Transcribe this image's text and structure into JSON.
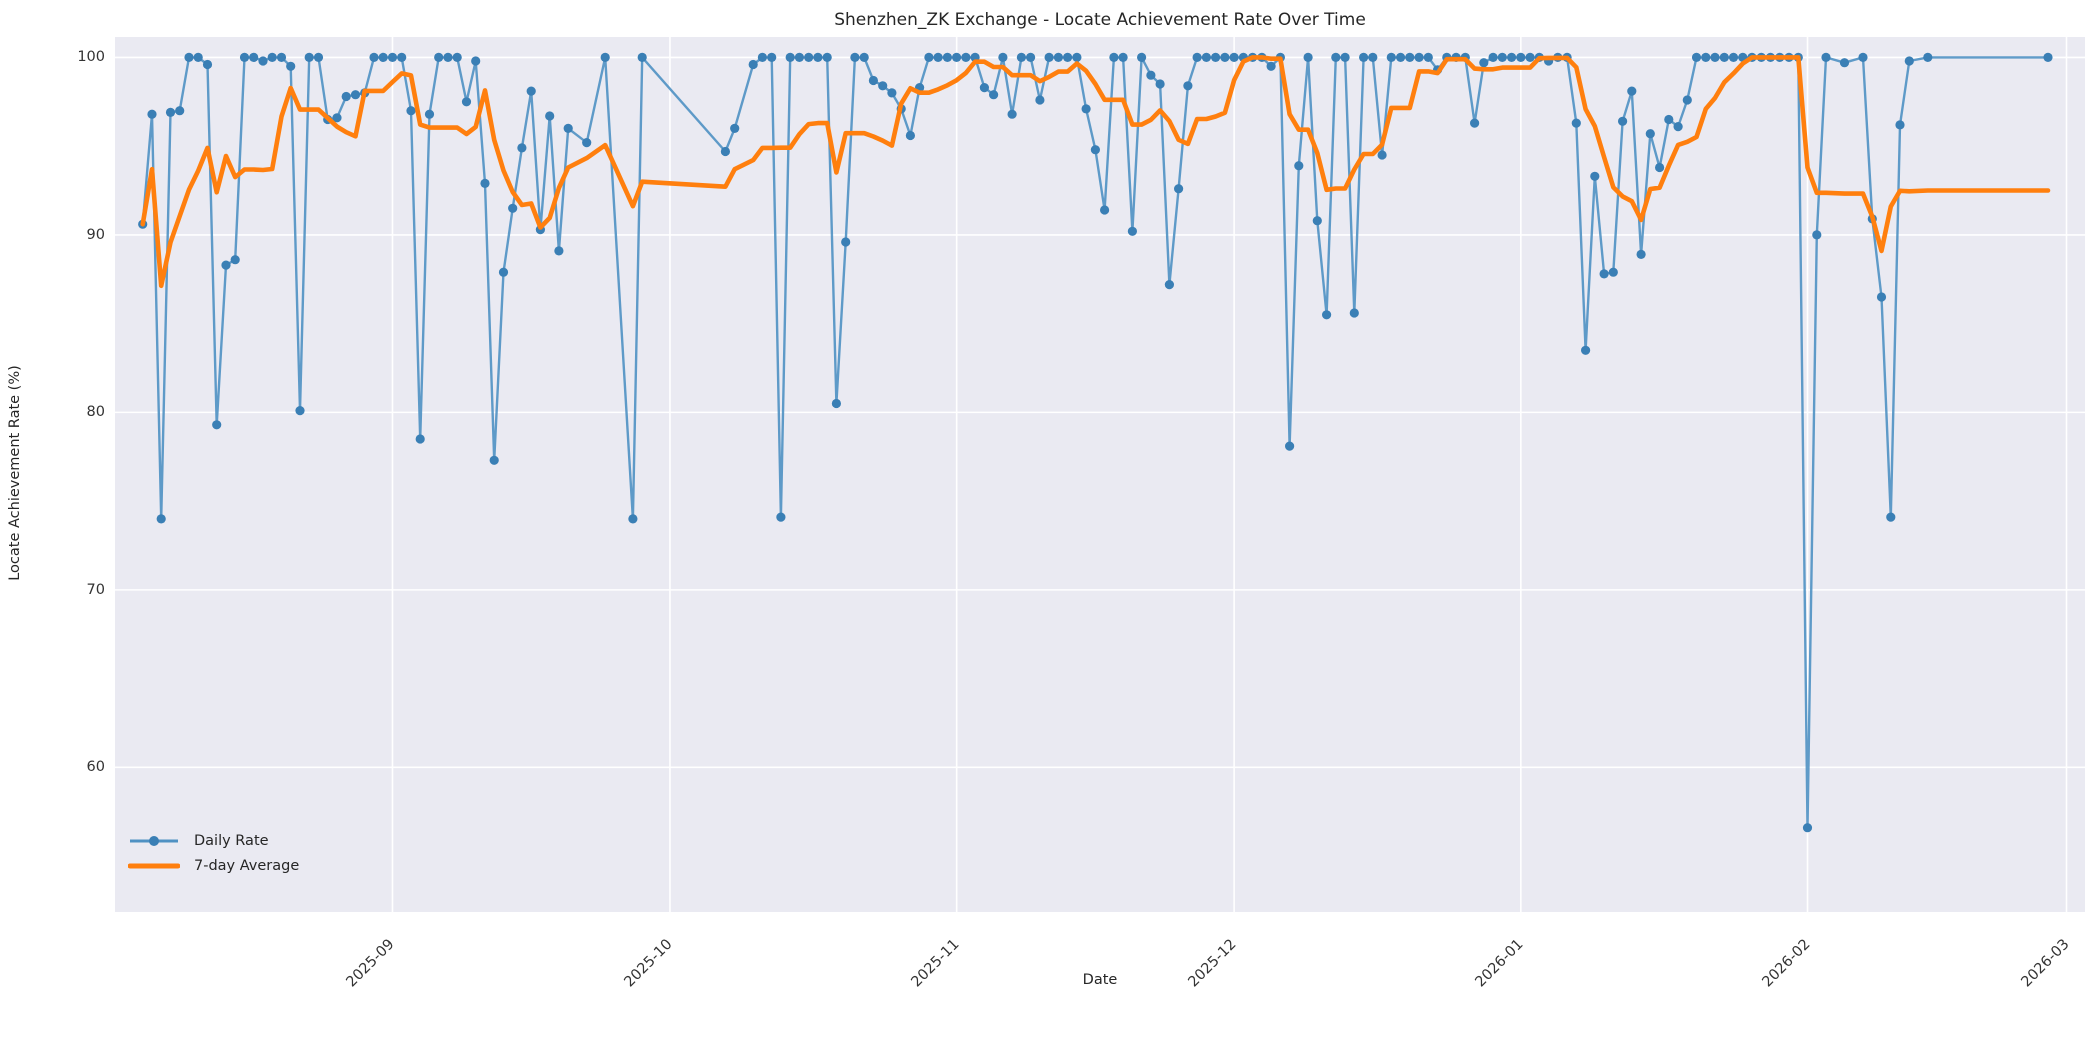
{
  "title": "Shenzhen_ZK Exchange - Locate Achievement Rate Over Time",
  "axes": {
    "xlabel": "Date",
    "ylabel": "Locate Achievement Rate (%)",
    "x_tick_labels": [
      "2025-09",
      "2025-10",
      "2025-11",
      "2025-12",
      "2026-01",
      "2026-02",
      "2026-03"
    ],
    "x_tick_dates": [
      "2025-09-01",
      "2025-10-01",
      "2025-11-01",
      "2025-12-01",
      "2026-01-01",
      "2026-02-01",
      "2026-03-01"
    ],
    "y_ticks": [
      60,
      70,
      80,
      90,
      100
    ],
    "x_range": [
      "2025-08-02",
      "2026-03-03"
    ],
    "y_range": [
      51.85,
      101.15
    ],
    "grid": true,
    "plot_background": "#eaeaf2",
    "grid_color": "#ffffff"
  },
  "legend": {
    "position": "lower-left",
    "entries": [
      {
        "label": "Daily Rate",
        "color": "#4f91c3",
        "marker": "circle"
      },
      {
        "label": "7-day Average",
        "color": "#ff7f0e",
        "marker": "line"
      }
    ]
  },
  "colors": {
    "daily_line": "#4f91c3",
    "daily_marker": "#3a7fb5",
    "avg_line": "#ff7f0e",
    "text": "#262626",
    "tick_text": "#333333"
  },
  "chart_data": {
    "type": "line",
    "title": "Shenzhen_ZK Exchange - Locate Achievement Rate Over Time",
    "xlabel": "Date",
    "ylabel": "Locate Achievement Rate (%)",
    "ylim": [
      51.85,
      101.15
    ],
    "legend_position": "lower left",
    "series": [
      {
        "name": "Daily Rate",
        "style": "line+markers",
        "points": [
          [
            "2025-08-05",
            90.6
          ],
          [
            "2025-08-06",
            96.8
          ],
          [
            "2025-08-07",
            74.0
          ],
          [
            "2025-08-08",
            96.9
          ],
          [
            "2025-08-09",
            97.0
          ],
          [
            "2025-08-10",
            100
          ],
          [
            "2025-08-11",
            100
          ],
          [
            "2025-08-12",
            99.6
          ],
          [
            "2025-08-13",
            79.3
          ],
          [
            "2025-08-14",
            88.3
          ],
          [
            "2025-08-15",
            88.6
          ],
          [
            "2025-08-16",
            100
          ],
          [
            "2025-08-17",
            100
          ],
          [
            "2025-08-18",
            99.8
          ],
          [
            "2025-08-19",
            100
          ],
          [
            "2025-08-20",
            100
          ],
          [
            "2025-08-21",
            99.5
          ],
          [
            "2025-08-22",
            80.1
          ],
          [
            "2025-08-23",
            100
          ],
          [
            "2025-08-24",
            100
          ],
          [
            "2025-08-25",
            96.5
          ],
          [
            "2025-08-26",
            96.6
          ],
          [
            "2025-08-27",
            97.8
          ],
          [
            "2025-08-28",
            97.9
          ],
          [
            "2025-08-29",
            98.0
          ],
          [
            "2025-08-30",
            100
          ],
          [
            "2025-08-31",
            100
          ],
          [
            "2025-09-01",
            100
          ],
          [
            "2025-09-02",
            100
          ],
          [
            "2025-09-03",
            97.0
          ],
          [
            "2025-09-04",
            78.5
          ],
          [
            "2025-09-05",
            96.8
          ],
          [
            "2025-09-06",
            100
          ],
          [
            "2025-09-07",
            100
          ],
          [
            "2025-09-08",
            100
          ],
          [
            "2025-09-09",
            97.5
          ],
          [
            "2025-09-10",
            99.8
          ],
          [
            "2025-09-11",
            92.9
          ],
          [
            "2025-09-12",
            77.3
          ],
          [
            "2025-09-13",
            87.9
          ],
          [
            "2025-09-14",
            91.5
          ],
          [
            "2025-09-15",
            94.9
          ],
          [
            "2025-09-16",
            98.1
          ],
          [
            "2025-09-17",
            90.3
          ],
          [
            "2025-09-18",
            96.7
          ],
          [
            "2025-09-19",
            89.1
          ],
          [
            "2025-09-20",
            96.0
          ],
          [
            "2025-09-22",
            95.2
          ],
          [
            "2025-09-24",
            100
          ],
          [
            "2025-09-27",
            74.0
          ],
          [
            "2025-09-28",
            100
          ],
          [
            "2025-10-07",
            94.7
          ],
          [
            "2025-10-08",
            96.0
          ],
          [
            "2025-10-10",
            99.6
          ],
          [
            "2025-10-11",
            100
          ],
          [
            "2025-10-12",
            100
          ],
          [
            "2025-10-13",
            74.1
          ],
          [
            "2025-10-14",
            100
          ],
          [
            "2025-10-15",
            100
          ],
          [
            "2025-10-16",
            100
          ],
          [
            "2025-10-17",
            100
          ],
          [
            "2025-10-18",
            100
          ],
          [
            "2025-10-19",
            80.5
          ],
          [
            "2025-10-20",
            89.6
          ],
          [
            "2025-10-21",
            100
          ],
          [
            "2025-10-22",
            100
          ],
          [
            "2025-10-23",
            98.7
          ],
          [
            "2025-10-24",
            98.4
          ],
          [
            "2025-10-25",
            98.0
          ],
          [
            "2025-10-26",
            97.1
          ],
          [
            "2025-10-27",
            95.6
          ],
          [
            "2025-10-28",
            98.3
          ],
          [
            "2025-10-29",
            100
          ],
          [
            "2025-10-30",
            100
          ],
          [
            "2025-10-31",
            100
          ],
          [
            "2025-11-01",
            100
          ],
          [
            "2025-11-02",
            100
          ],
          [
            "2025-11-03",
            100
          ],
          [
            "2025-11-04",
            98.3
          ],
          [
            "2025-11-05",
            97.9
          ],
          [
            "2025-11-06",
            100
          ],
          [
            "2025-11-07",
            96.8
          ],
          [
            "2025-11-08",
            100
          ],
          [
            "2025-11-09",
            100
          ],
          [
            "2025-11-10",
            97.6
          ],
          [
            "2025-11-11",
            100
          ],
          [
            "2025-11-12",
            100
          ],
          [
            "2025-11-13",
            100
          ],
          [
            "2025-11-14",
            100
          ],
          [
            "2025-11-15",
            97.1
          ],
          [
            "2025-11-16",
            94.8
          ],
          [
            "2025-11-17",
            91.4
          ],
          [
            "2025-11-18",
            100
          ],
          [
            "2025-11-19",
            100
          ],
          [
            "2025-11-20",
            90.2
          ],
          [
            "2025-11-21",
            100
          ],
          [
            "2025-11-22",
            99.0
          ],
          [
            "2025-11-23",
            98.5
          ],
          [
            "2025-11-24",
            87.2
          ],
          [
            "2025-11-25",
            92.6
          ],
          [
            "2025-11-26",
            98.4
          ],
          [
            "2025-11-27",
            100
          ],
          [
            "2025-11-28",
            100
          ],
          [
            "2025-11-29",
            100
          ],
          [
            "2025-11-30",
            100
          ],
          [
            "2025-12-01",
            100
          ],
          [
            "2025-12-02",
            100
          ],
          [
            "2025-12-03",
            100
          ],
          [
            "2025-12-04",
            100
          ],
          [
            "2025-12-05",
            99.5
          ],
          [
            "2025-12-06",
            100
          ],
          [
            "2025-12-07",
            78.1
          ],
          [
            "2025-12-08",
            93.9
          ],
          [
            "2025-12-09",
            100
          ],
          [
            "2025-12-10",
            90.8
          ],
          [
            "2025-12-11",
            85.5
          ],
          [
            "2025-12-12",
            100
          ],
          [
            "2025-12-13",
            100
          ],
          [
            "2025-12-14",
            85.6
          ],
          [
            "2025-12-15",
            100
          ],
          [
            "2025-12-16",
            100
          ],
          [
            "2025-12-17",
            94.5
          ],
          [
            "2025-12-18",
            100
          ],
          [
            "2025-12-19",
            100
          ],
          [
            "2025-12-20",
            100
          ],
          [
            "2025-12-21",
            100
          ],
          [
            "2025-12-22",
            100
          ],
          [
            "2025-12-23",
            99.3
          ],
          [
            "2025-12-24",
            100
          ],
          [
            "2025-12-25",
            100
          ],
          [
            "2025-12-26",
            100
          ],
          [
            "2025-12-27",
            96.3
          ],
          [
            "2025-12-28",
            99.7
          ],
          [
            "2025-12-29",
            100
          ],
          [
            "2025-12-30",
            100
          ],
          [
            "2025-12-31",
            100
          ],
          [
            "2026-01-01",
            100
          ],
          [
            "2026-01-02",
            100
          ],
          [
            "2026-01-03",
            100
          ],
          [
            "2026-01-04",
            99.8
          ],
          [
            "2026-01-05",
            100
          ],
          [
            "2026-01-06",
            100
          ],
          [
            "2026-01-07",
            96.3
          ],
          [
            "2026-01-08",
            83.5
          ],
          [
            "2026-01-09",
            93.3
          ],
          [
            "2026-01-10",
            87.8
          ],
          [
            "2026-01-11",
            87.9
          ],
          [
            "2026-01-12",
            96.4
          ],
          [
            "2026-01-13",
            98.1
          ],
          [
            "2026-01-14",
            88.9
          ],
          [
            "2026-01-15",
            95.7
          ],
          [
            "2026-01-16",
            93.8
          ],
          [
            "2026-01-17",
            96.5
          ],
          [
            "2026-01-18",
            96.1
          ],
          [
            "2026-01-19",
            97.6
          ],
          [
            "2026-01-20",
            100
          ],
          [
            "2026-01-21",
            100
          ],
          [
            "2026-01-22",
            100
          ],
          [
            "2026-01-23",
            100
          ],
          [
            "2026-01-24",
            100
          ],
          [
            "2026-01-25",
            100
          ],
          [
            "2026-01-26",
            100
          ],
          [
            "2026-01-27",
            100
          ],
          [
            "2026-01-28",
            100
          ],
          [
            "2026-01-29",
            100
          ],
          [
            "2026-01-30",
            100
          ],
          [
            "2026-01-31",
            100
          ],
          [
            "2026-02-01",
            56.6
          ],
          [
            "2026-02-02",
            90.0
          ],
          [
            "2026-02-03",
            100
          ],
          [
            "2026-02-05",
            99.7
          ],
          [
            "2026-02-07",
            100
          ],
          [
            "2026-02-08",
            90.9
          ],
          [
            "2026-02-09",
            86.5
          ],
          [
            "2026-02-10",
            74.1
          ],
          [
            "2026-02-11",
            96.2
          ],
          [
            "2026-02-12",
            99.8
          ],
          [
            "2026-02-14",
            100
          ],
          [
            "2026-02-27",
            100
          ]
        ]
      },
      {
        "name": "7-day Average",
        "style": "line",
        "derived_from": "Daily Rate",
        "method": "rolling mean over last 7 observations (min_periods=1)"
      }
    ]
  }
}
